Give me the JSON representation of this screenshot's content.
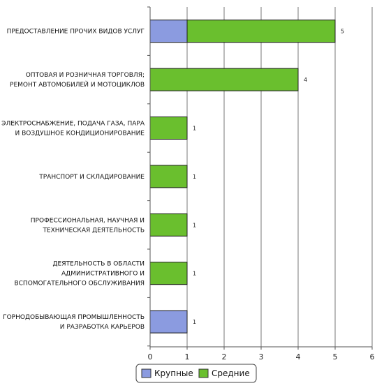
{
  "chart_data": {
    "type": "bar",
    "orientation": "horizontal",
    "stacked": true,
    "categories": [
      "ПРЕДОСТАВЛЕНИЕ ПРОЧИХ ВИДОВ УСЛУГ",
      "ОПТОВАЯ И РОЗНИЧНАЯ ТОРГОВЛЯ;\nРЕМОНТ АВТОМОБИЛЕЙ И МОТОЦИКЛОВ",
      "ЭЛЕКТРОСНАБЖЕНИЕ, ПОДАЧА ГАЗА, ПАРА\nИ ВОЗДУШНОЕ КОНДИЦИОНИРОВАНИЕ",
      "ТРАНСПОРТ И СКЛАДИРОВАНИЕ",
      "ПРОФЕССИОНАЛЬНАЯ, НАУЧНАЯ И\nТЕХНИЧЕСКАЯ ДЕЯТЕЛЬНОСТЬ",
      "ДЕЯТЕЛЬНОСТЬ В ОБЛАСТИ\nАДМИНИСТРАТИВНОГО И\nВСПОМОГАТЕЛЬНОГО ОБСЛУЖИВАНИЯ",
      "ГОРНОДОБЫВАЮЩАЯ ПРОМЫШЛЕННОСТЬ\nИ РАЗРАБОТКА КАРЬЕРОВ"
    ],
    "series": [
      {
        "name": "Крупные",
        "color": "#8b9be0",
        "values": [
          1,
          0,
          0,
          0,
          0,
          0,
          1
        ]
      },
      {
        "name": "Средние",
        "color": "#6abf2e",
        "values": [
          4,
          4,
          1,
          1,
          1,
          1,
          0
        ]
      }
    ],
    "totals": [
      "5",
      "4",
      "1",
      "1",
      "1",
      "1",
      "1"
    ],
    "xlim": [
      0,
      6
    ],
    "xticks": [
      "0",
      "1",
      "2",
      "3",
      "4",
      "5",
      "6"
    ],
    "grid": true,
    "legend_position": "bottom"
  }
}
